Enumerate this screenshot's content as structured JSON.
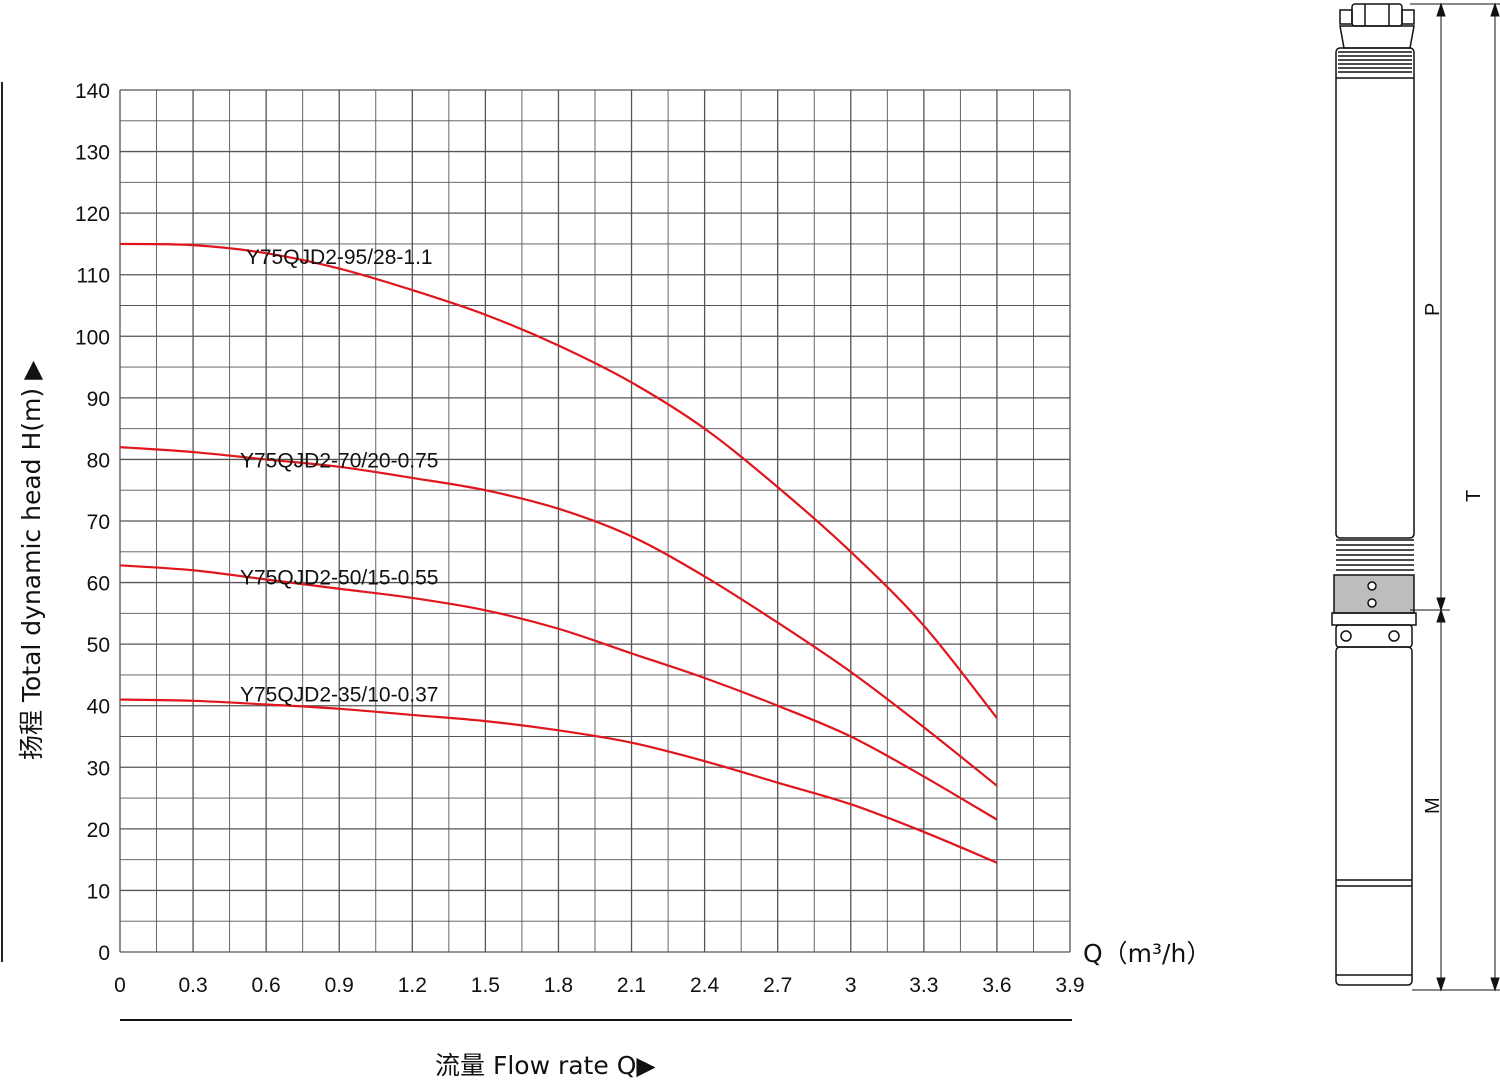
{
  "chart_data": {
    "type": "line",
    "xlabel": "流量 Flow rate Q▶",
    "ylabel": "扬程 Total dynamic head H(m) ▶",
    "x_unit_label": "Q（m³/h）",
    "xlim": [
      0,
      3.9
    ],
    "ylim": [
      0,
      140
    ],
    "x_ticks": [
      "0",
      "0.3",
      "0.6",
      "0.9",
      "1.2",
      "1.5",
      "1.8",
      "2.1",
      "2.4",
      "2.7",
      "3",
      "3.3",
      "3.6",
      "3.9"
    ],
    "y_ticks": [
      "0",
      "10",
      "20",
      "30",
      "40",
      "50",
      "60",
      "70",
      "80",
      "90",
      "100",
      "110",
      "120",
      "130",
      "140"
    ],
    "grid": true,
    "series": [
      {
        "name": "Y75QJD2-95/28-1.1",
        "color": "#e0161e",
        "x": [
          0,
          0.3,
          0.6,
          0.9,
          1.2,
          1.5,
          1.8,
          2.1,
          2.4,
          2.7,
          3.0,
          3.3,
          3.6
        ],
        "y": [
          115,
          114.8,
          113.5,
          111,
          107.5,
          103.5,
          98.5,
          92.5,
          85,
          75.5,
          65,
          53,
          38
        ]
      },
      {
        "name": "Y75QJD2-70/20-0.75",
        "color": "#e0161e",
        "x": [
          0,
          0.3,
          0.6,
          0.9,
          1.2,
          1.5,
          1.8,
          2.1,
          2.4,
          2.7,
          3.0,
          3.3,
          3.6
        ],
        "y": [
          82,
          81.2,
          80,
          78.8,
          77,
          75,
          72,
          67.5,
          61,
          53.5,
          45.5,
          36.5,
          27
        ]
      },
      {
        "name": "Y75QJD2-50/15-0.55",
        "color": "#e0161e",
        "x": [
          0,
          0.3,
          0.6,
          0.9,
          1.2,
          1.5,
          1.8,
          2.1,
          2.4,
          2.7,
          3.0,
          3.3,
          3.6
        ],
        "y": [
          62.8,
          62,
          60.5,
          59,
          57.5,
          55.5,
          52.5,
          48.5,
          44.5,
          40,
          35,
          28.5,
          21.5
        ]
      },
      {
        "name": "Y75QJD2-35/10-0.37",
        "color": "#e0161e",
        "x": [
          0,
          0.3,
          0.6,
          0.9,
          1.2,
          1.5,
          1.8,
          2.1,
          2.4,
          2.7,
          3.0,
          3.3,
          3.6
        ],
        "y": [
          41,
          40.8,
          40.2,
          39.5,
          38.5,
          37.5,
          36,
          34,
          31,
          27.5,
          24,
          19.5,
          14.5
        ]
      }
    ]
  },
  "pump_diagram": {
    "dimension_labels": [
      "P",
      "T",
      "M"
    ]
  }
}
